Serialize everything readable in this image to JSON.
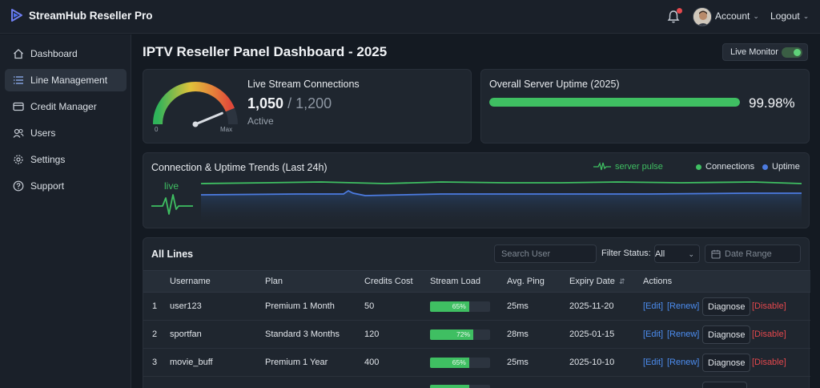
{
  "app": {
    "name": "StreamHub Reseller Pro"
  },
  "header": {
    "account_label": "Account",
    "logout_label": "Logout"
  },
  "sidebar": {
    "items": [
      {
        "label": "Dashboard",
        "icon": "home-icon"
      },
      {
        "label": "Line Management",
        "icon": "list-icon",
        "active": true
      },
      {
        "label": "Credit Manager",
        "icon": "credit-card-icon"
      },
      {
        "label": "Users",
        "icon": "users-icon"
      },
      {
        "label": "Settings",
        "icon": "gear-icon"
      },
      {
        "label": "Support",
        "icon": "help-icon"
      }
    ]
  },
  "page": {
    "title": "IPTV Reseller Panel Dashboard - 2025",
    "live_monitor_label": "Live Monitor",
    "live_monitor_on": true
  },
  "live_card": {
    "title": "Live Stream Connections",
    "current": "1,050",
    "separator": "/",
    "max": "1,200",
    "status": "Active",
    "gauge_min": "0",
    "gauge_max": "Max",
    "gauge_fraction": 0.875
  },
  "uptime_card": {
    "title": "Overall Server Uptime (2025)",
    "value": "99.98%",
    "fraction": 0.9998
  },
  "trend_card": {
    "title": "Connection & Uptime Trends (Last 24h)",
    "legend_pulse": "server pulse",
    "legend_connections": "Connections",
    "legend_uptime": "Uptime",
    "live_label": "live"
  },
  "lines": {
    "title": "All Lines",
    "search_placeholder": "Search User",
    "filter_label": "Filter Status:",
    "filter_value": "All",
    "date_placeholder": "Date Range",
    "columns": [
      "Username",
      "Plan",
      "Credits Cost",
      "Stream Load",
      "Avg. Ping",
      "Expiry Date",
      "Actions"
    ],
    "actions": {
      "edit": "[Edit]",
      "renew": "[Renew]",
      "diagnose": "Diagnose",
      "disable": "[Disable]"
    },
    "rows": [
      {
        "num": "1",
        "username": "user123",
        "plan": "Premium 1 Month",
        "credits": "50",
        "load": "65%",
        "ping": "25ms",
        "expiry": "2025-11-20"
      },
      {
        "num": "2",
        "username": "sportfan",
        "plan": "Standard 3 Months",
        "credits": "120",
        "load": "72%",
        "ping": "28ms",
        "expiry": "2025-01-15"
      },
      {
        "num": "3",
        "username": "movie_buff",
        "plan": "Premium 1 Year",
        "credits": "400",
        "load": "65%",
        "ping": "25ms",
        "expiry": "2025-10-10"
      }
    ]
  },
  "colors": {
    "accent_green": "#3fbf62",
    "accent_blue": "#4c7be0",
    "link_blue": "#4c8df0",
    "danger_red": "#e5484d"
  }
}
